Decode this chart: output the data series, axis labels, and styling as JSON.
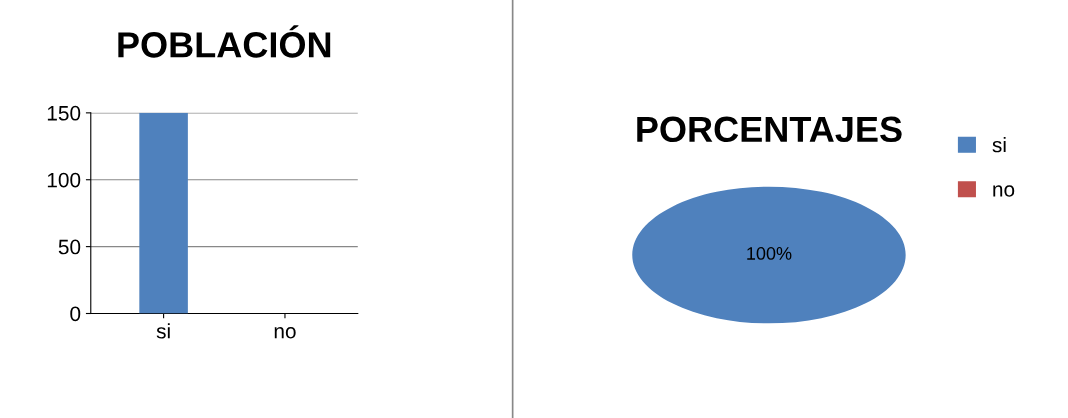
{
  "chart_data": [
    {
      "type": "bar",
      "title": "POBLACIÓN",
      "categories": [
        "si",
        "no"
      ],
      "values": [
        150,
        0
      ],
      "color": "#4f81bd",
      "ylim": [
        0,
        150
      ],
      "yticks": [
        0,
        50,
        100,
        150
      ],
      "grid": "y",
      "legend": false
    },
    {
      "type": "pie",
      "title": "PORCENTAJES",
      "categories": [
        "si",
        "no"
      ],
      "values": [
        100,
        0
      ],
      "colors": [
        "#4f81bd",
        "#c0504d"
      ],
      "value_labels": [
        "100%",
        null
      ],
      "legend": "top right"
    }
  ]
}
